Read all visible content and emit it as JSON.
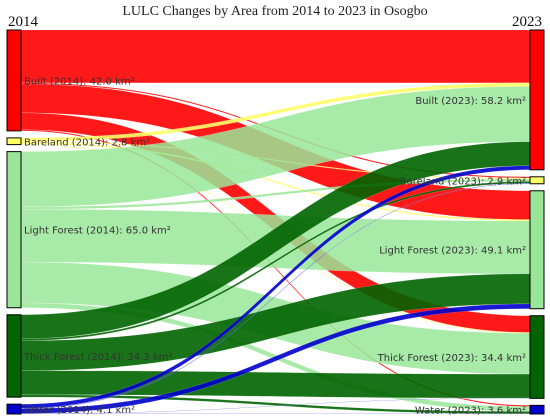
{
  "chart_data": {
    "type": "sankey",
    "title": "LULC Changes by Area from 2014 to 2023 in Osogbo",
    "left_header": "2014",
    "right_header": "2023",
    "units": "km²",
    "colors": {
      "Built": "#ff0000",
      "Bareland": "#ffff66",
      "Light Forest": "#99e699",
      "Thick Forest": "#006400",
      "Water": "#0000cc"
    },
    "left_nodes": [
      {
        "name": "Built",
        "label": "Built (2014): 42.0 km²",
        "value": 42.0
      },
      {
        "name": "Bareland",
        "label": "Bareland (2014): 2.8 km²",
        "value": 2.8
      },
      {
        "name": "Light Forest",
        "label": "Light Forest (2014): 65.0 km²",
        "value": 65.0
      },
      {
        "name": "Thick Forest",
        "label": "Thick Forest (2014): 34.3 km²",
        "value": 34.3
      },
      {
        "name": "Water",
        "label": "Water (2014): 4.1 km²",
        "value": 4.1
      }
    ],
    "right_nodes": [
      {
        "name": "Built",
        "label": "Built (2023): 58.2 km²",
        "value": 58.2
      },
      {
        "name": "Bareland",
        "label": "Bareland (2023): 2.9 km²",
        "value": 2.9
      },
      {
        "name": "Light Forest",
        "label": "Light Forest (2023): 49.1 km²",
        "value": 49.1
      },
      {
        "name": "Thick Forest",
        "label": "Thick Forest (2023): 34.4 km²",
        "value": 34.4
      },
      {
        "name": "Water",
        "label": "Water (2023): 3.6 km²",
        "value": 3.6
      }
    ],
    "flows": [
      {
        "source": "Built",
        "target": "Built",
        "value": 22.0
      },
      {
        "source": "Built",
        "target": "Bareland",
        "value": 0.5
      },
      {
        "source": "Built",
        "target": "Light Forest",
        "value": 12.0
      },
      {
        "source": "Built",
        "target": "Thick Forest",
        "value": 7.0
      },
      {
        "source": "Built",
        "target": "Water",
        "value": 0.5
      },
      {
        "source": "Bareland",
        "target": "Built",
        "value": 1.5
      },
      {
        "source": "Bareland",
        "target": "Bareland",
        "value": 0.4
      },
      {
        "source": "Bareland",
        "target": "Light Forest",
        "value": 0.6
      },
      {
        "source": "Bareland",
        "target": "Thick Forest",
        "value": 0.3
      },
      {
        "source": "Light Forest",
        "target": "Built",
        "value": 23.0
      },
      {
        "source": "Light Forest",
        "target": "Bareland",
        "value": 1.0
      },
      {
        "source": "Light Forest",
        "target": "Light Forest",
        "value": 22.0
      },
      {
        "source": "Light Forest",
        "target": "Thick Forest",
        "value": 17.0
      },
      {
        "source": "Light Forest",
        "target": "Water",
        "value": 2.0
      },
      {
        "source": "Thick Forest",
        "target": "Built",
        "value": 10.0
      },
      {
        "source": "Thick Forest",
        "target": "Bareland",
        "value": 0.8
      },
      {
        "source": "Thick Forest",
        "target": "Light Forest",
        "value": 12.5
      },
      {
        "source": "Thick Forest",
        "target": "Thick Forest",
        "value": 10.0
      },
      {
        "source": "Thick Forest",
        "target": "Water",
        "value": 1.0
      },
      {
        "source": "Water",
        "target": "Built",
        "value": 1.7
      },
      {
        "source": "Water",
        "target": "Bareland",
        "value": 0.2
      },
      {
        "source": "Water",
        "target": "Light Forest",
        "value": 2.0
      },
      {
        "source": "Water",
        "target": "Thick Forest",
        "value": 0.1
      },
      {
        "source": "Water",
        "target": "Water",
        "value": 0.1
      }
    ]
  }
}
